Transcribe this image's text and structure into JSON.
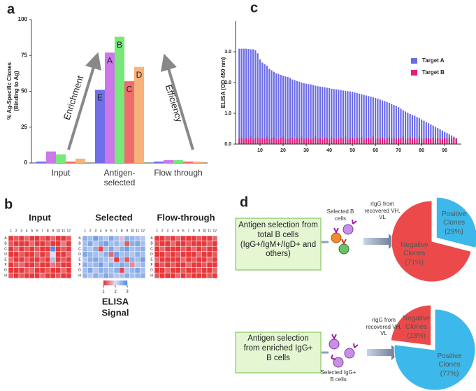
{
  "panel_letters": [
    "a",
    "b",
    "c",
    "d"
  ],
  "chart_data": [
    {
      "type": "bar",
      "y_label": [
        "% Ag-Specific Clones",
        "(Binding to Ag)"
      ],
      "categories": [
        "Input",
        "Antigen-selected",
        "Flow through"
      ],
      "series": [
        {
          "name": "E",
          "color": "#6f6fe8",
          "values": [
            1,
            51,
            1
          ]
        },
        {
          "name": "A",
          "color": "#cc77ea",
          "values": [
            8,
            77,
            2
          ]
        },
        {
          "name": "B",
          "color": "#77e87a",
          "values": [
            6,
            88,
            2
          ]
        },
        {
          "name": "C",
          "color": "#f06b6b",
          "values": [
            1,
            57,
            1
          ]
        },
        {
          "name": "D",
          "color": "#f8b27a",
          "values": [
            3,
            67,
            1
          ]
        }
      ],
      "ylim": [
        0,
        100
      ],
      "yticks": [
        0,
        25,
        50,
        75,
        100
      ],
      "annotations": [
        "Enrichment",
        "Efficiency"
      ]
    },
    {
      "type": "bar",
      "y_label": "ELISA (OD 450 nm)",
      "x": [
        1,
        2,
        3,
        4,
        5,
        6,
        7,
        8,
        9,
        10,
        11,
        12,
        13,
        14,
        15,
        16,
        17,
        18,
        19,
        20,
        21,
        22,
        23,
        24,
        25,
        26,
        27,
        28,
        29,
        30,
        31,
        32,
        33,
        34,
        35,
        36,
        37,
        38,
        39,
        40,
        41,
        42,
        43,
        44,
        45,
        46,
        47,
        48,
        49,
        50,
        51,
        52,
        53,
        54,
        55,
        56,
        57,
        58,
        59,
        60,
        61,
        62,
        63,
        64,
        65,
        66,
        67,
        68,
        69,
        70,
        71,
        72,
        73,
        74,
        75,
        76,
        77,
        78,
        79,
        80,
        81,
        82,
        83,
        84,
        85,
        86,
        87,
        88,
        89,
        90,
        91,
        92,
        93,
        94,
        95
      ],
      "series": [
        {
          "name": "Target A",
          "color": "#6b6be6",
          "values": [
            3.1,
            3.1,
            3.1,
            3.1,
            3.09,
            3.08,
            3.08,
            3.05,
            2.95,
            2.75,
            2.65,
            2.6,
            2.55,
            2.45,
            2.4,
            2.35,
            2.3,
            2.28,
            2.25,
            2.22,
            2.2,
            2.18,
            2.15,
            2.1,
            2.08,
            2.05,
            2.03,
            2.0,
            1.98,
            1.96,
            1.95,
            1.94,
            1.92,
            1.9,
            1.88,
            1.87,
            1.86,
            1.85,
            1.83,
            1.82,
            1.8,
            1.79,
            1.78,
            1.77,
            1.75,
            1.74,
            1.73,
            1.72,
            1.71,
            1.7,
            1.68,
            1.66,
            1.64,
            1.62,
            1.6,
            1.58,
            1.56,
            1.54,
            1.52,
            1.5,
            1.48,
            1.45,
            1.42,
            1.4,
            1.37,
            1.34,
            1.3,
            1.27,
            1.24,
            1.2,
            1.15,
            1.1,
            1.06,
            1.02,
            0.98,
            0.95,
            0.92,
            0.88,
            0.85,
            0.8,
            0.76,
            0.72,
            0.68,
            0.64,
            0.6,
            0.56,
            0.52,
            0.48,
            0.44,
            0.4,
            0.36,
            0.32,
            0.28,
            0.24,
            0.2
          ]
        },
        {
          "name": "Target B",
          "color": "#e0207a",
          "values": [
            0.18,
            0.22,
            0.15,
            0.2,
            0.17,
            0.24,
            0.16,
            0.19,
            0.21,
            0.15,
            0.2,
            0.17,
            0.23,
            0.16,
            0.19,
            0.22,
            0.15,
            0.18,
            0.2,
            0.24,
            0.16,
            0.19,
            0.17,
            0.22,
            0.15,
            0.2,
            0.18,
            0.23,
            0.16,
            0.19,
            0.21,
            0.15,
            0.18,
            0.24,
            0.17,
            0.2,
            0.16,
            0.22,
            0.19,
            0.15,
            0.23,
            0.18,
            0.16,
            0.2,
            0.21,
            0.17,
            0.24,
            0.15,
            0.19,
            0.22,
            0.16,
            0.2,
            0.18,
            0.23,
            0.15,
            0.19,
            0.21,
            0.17,
            0.24,
            0.16,
            0.2,
            0.18,
            0.22,
            0.15,
            0.19,
            0.23,
            0.17,
            0.2,
            0.16,
            0.21,
            0.18,
            0.24,
            0.15,
            0.19,
            0.22,
            0.17,
            0.2,
            0.16,
            0.23,
            0.18,
            0.15,
            0.21,
            0.19,
            0.17,
            0.22,
            0.16,
            0.2,
            0.18,
            0.15,
            0.21,
            0.17,
            0.19,
            0.16,
            0.2,
            0.18
          ]
        }
      ],
      "xlim": [
        0,
        96
      ],
      "xticks": [
        10,
        20,
        30,
        40,
        50,
        60,
        70,
        80,
        90
      ],
      "ylim": [
        0,
        4
      ],
      "yticks": [
        {
          "value": 0,
          "label": "0.0"
        },
        {
          "value": 1,
          "label": "1.0"
        },
        {
          "value": 2,
          "label": "2.0"
        },
        {
          "value": 3,
          "label": "3.0"
        }
      ],
      "legend": "upper right"
    },
    {
      "type": "heatmap",
      "row_labels": [
        "A",
        "B",
        "C",
        "D",
        "E",
        "F",
        "G",
        "H"
      ],
      "col_labels": [
        1,
        2,
        3,
        4,
        5,
        6,
        7,
        8,
        9,
        10,
        11,
        12
      ],
      "plates": [
        {
          "title": "Input",
          "values": [
            [
              1,
              1.2,
              1,
              1.3,
              1,
              1,
              1.2,
              1,
              1.3,
              1,
              1,
              1.2
            ],
            [
              1.2,
              1,
              1,
              1,
              1.3,
              1,
              1,
              1.2,
              1,
              1,
              1.4,
              1
            ],
            [
              1,
              1.3,
              1,
              1.2,
              1,
              1.2,
              1,
              1,
              3,
              1,
              1.2,
              1
            ],
            [
              1,
              1,
              1.2,
              1,
              1,
              1.3,
              1,
              1.2,
              2,
              1,
              1,
              1.3
            ],
            [
              1.3,
              1,
              1,
              1.2,
              1,
              1,
              1.2,
              1,
              2.4,
              1,
              1.2,
              1
            ],
            [
              1,
              1.2,
              1.3,
              1,
              1,
              1.2,
              1,
              1,
              1.4,
              1.2,
              1,
              1
            ],
            [
              1,
              1,
              1,
              1.2,
              1.3,
              1,
              1,
              1.2,
              1,
              1,
              1.3,
              1
            ],
            [
              1.2,
              1,
              1.2,
              1,
              1,
              1,
              1.3,
              1,
              1,
              1.2,
              1,
              1
            ]
          ]
        },
        {
          "title": "Selected",
          "values": [
            [
              2.6,
              2.4,
              2.8,
              2.5,
              2.3,
              2.7,
              2.4,
              1.8,
              2.6,
              2.5,
              2.4,
              2.3
            ],
            [
              2.4,
              2.7,
              2.3,
              2.6,
              2.8,
              2.4,
              2.5,
              2.3,
              1.2,
              2.6,
              2.7,
              2.4
            ],
            [
              2.5,
              2.3,
              2.6,
              1.1,
              2.4,
              2.7,
              2.3,
              2.6,
              2.8,
              2.4,
              2.5,
              2.6
            ],
            [
              2.7,
              2.5,
              2.4,
              2.3,
              2.6,
              1.3,
              2.8,
              2.4,
              2.5,
              2.3,
              2.6,
              2.4
            ],
            [
              2.3,
              2.6,
              2.7,
              2.5,
              2.4,
              2.3,
              1,
              2.5,
              1.2,
              2.6,
              2.4,
              2.8
            ],
            [
              2.6,
              2.4,
              2.5,
              2.8,
              2.3,
              2.6,
              2.4,
              2.7,
              2.5,
              1.5,
              2.3,
              2.5
            ],
            [
              2.4,
              2.7,
              2.3,
              2.6,
              2.5,
              2.4,
              2.6,
              1.1,
              2.3,
              2.5,
              2.7,
              2.4
            ],
            [
              2.5,
              2.3,
              2.6,
              2.4,
              2.7,
              2.5,
              2.3,
              2.4,
              2.6,
              2.4,
              2.5,
              2.6
            ]
          ]
        },
        {
          "title": "Flow-through",
          "values": [
            [
              1,
              1,
              1.2,
              1,
              1.3,
              1,
              1,
              1,
              1.2,
              1,
              1,
              1.3
            ],
            [
              1.2,
              1,
              1,
              1.3,
              1,
              1,
              1.2,
              1,
              1,
              1,
              1.2,
              1
            ],
            [
              1,
              1.3,
              1,
              1,
              1,
              1.2,
              1,
              1.3,
              1,
              1.2,
              1,
              1
            ],
            [
              1,
              1,
              1.2,
              1,
              1.2,
              1,
              1,
              1,
              1.3,
              1,
              1,
              1.2
            ],
            [
              1.3,
              1,
              1,
              1,
              1,
              1.3,
              1,
              1.2,
              1,
              1,
              1.3,
              1
            ],
            [
              1,
              1.2,
              1,
              1.2,
              1,
              1,
              1.3,
              1,
              1,
              1.2,
              1,
              1
            ],
            [
              1,
              1,
              1.3,
              1,
              1,
              1.2,
              1,
              1,
              1.2,
              1,
              1,
              1.3
            ],
            [
              1.2,
              1,
              1,
              1,
              1.3,
              1,
              1.2,
              1,
              1,
              1,
              1.2,
              1
            ]
          ]
        }
      ],
      "clim": [
        1,
        3
      ],
      "colorbar_ticks": [
        1,
        2,
        3
      ],
      "colorbar_label": [
        "ELISA",
        "Signal"
      ]
    },
    {
      "type": "pie",
      "categories": [
        "Positive Clones",
        "Negative Clones"
      ],
      "values": [
        29,
        71
      ],
      "value_labels": [
        "(29%)",
        "(71%)"
      ],
      "colors": [
        "#3cb8ea",
        "#ec4a4a"
      ]
    },
    {
      "type": "pie",
      "categories": [
        "Negative Clones",
        "Positive Clones"
      ],
      "values": [
        23,
        77
      ],
      "value_labels": [
        "(23%)",
        "(77%)"
      ],
      "colors": [
        "#ec4a4a",
        "#3cb8ea"
      ]
    }
  ],
  "panel_d": {
    "box_1": "Antigen selection from total B cells (IgG+/IgM+/IgD+ and others)",
    "box_2": "Antigen selection from enriched IgG+ B cells",
    "cells_1": "Selected B cells",
    "cells_2": "Selected IgG+ B cells",
    "arrow_1": "rIgG from recovered VH, VL",
    "arrow_2": "rIgG from recovered VH, VL"
  }
}
